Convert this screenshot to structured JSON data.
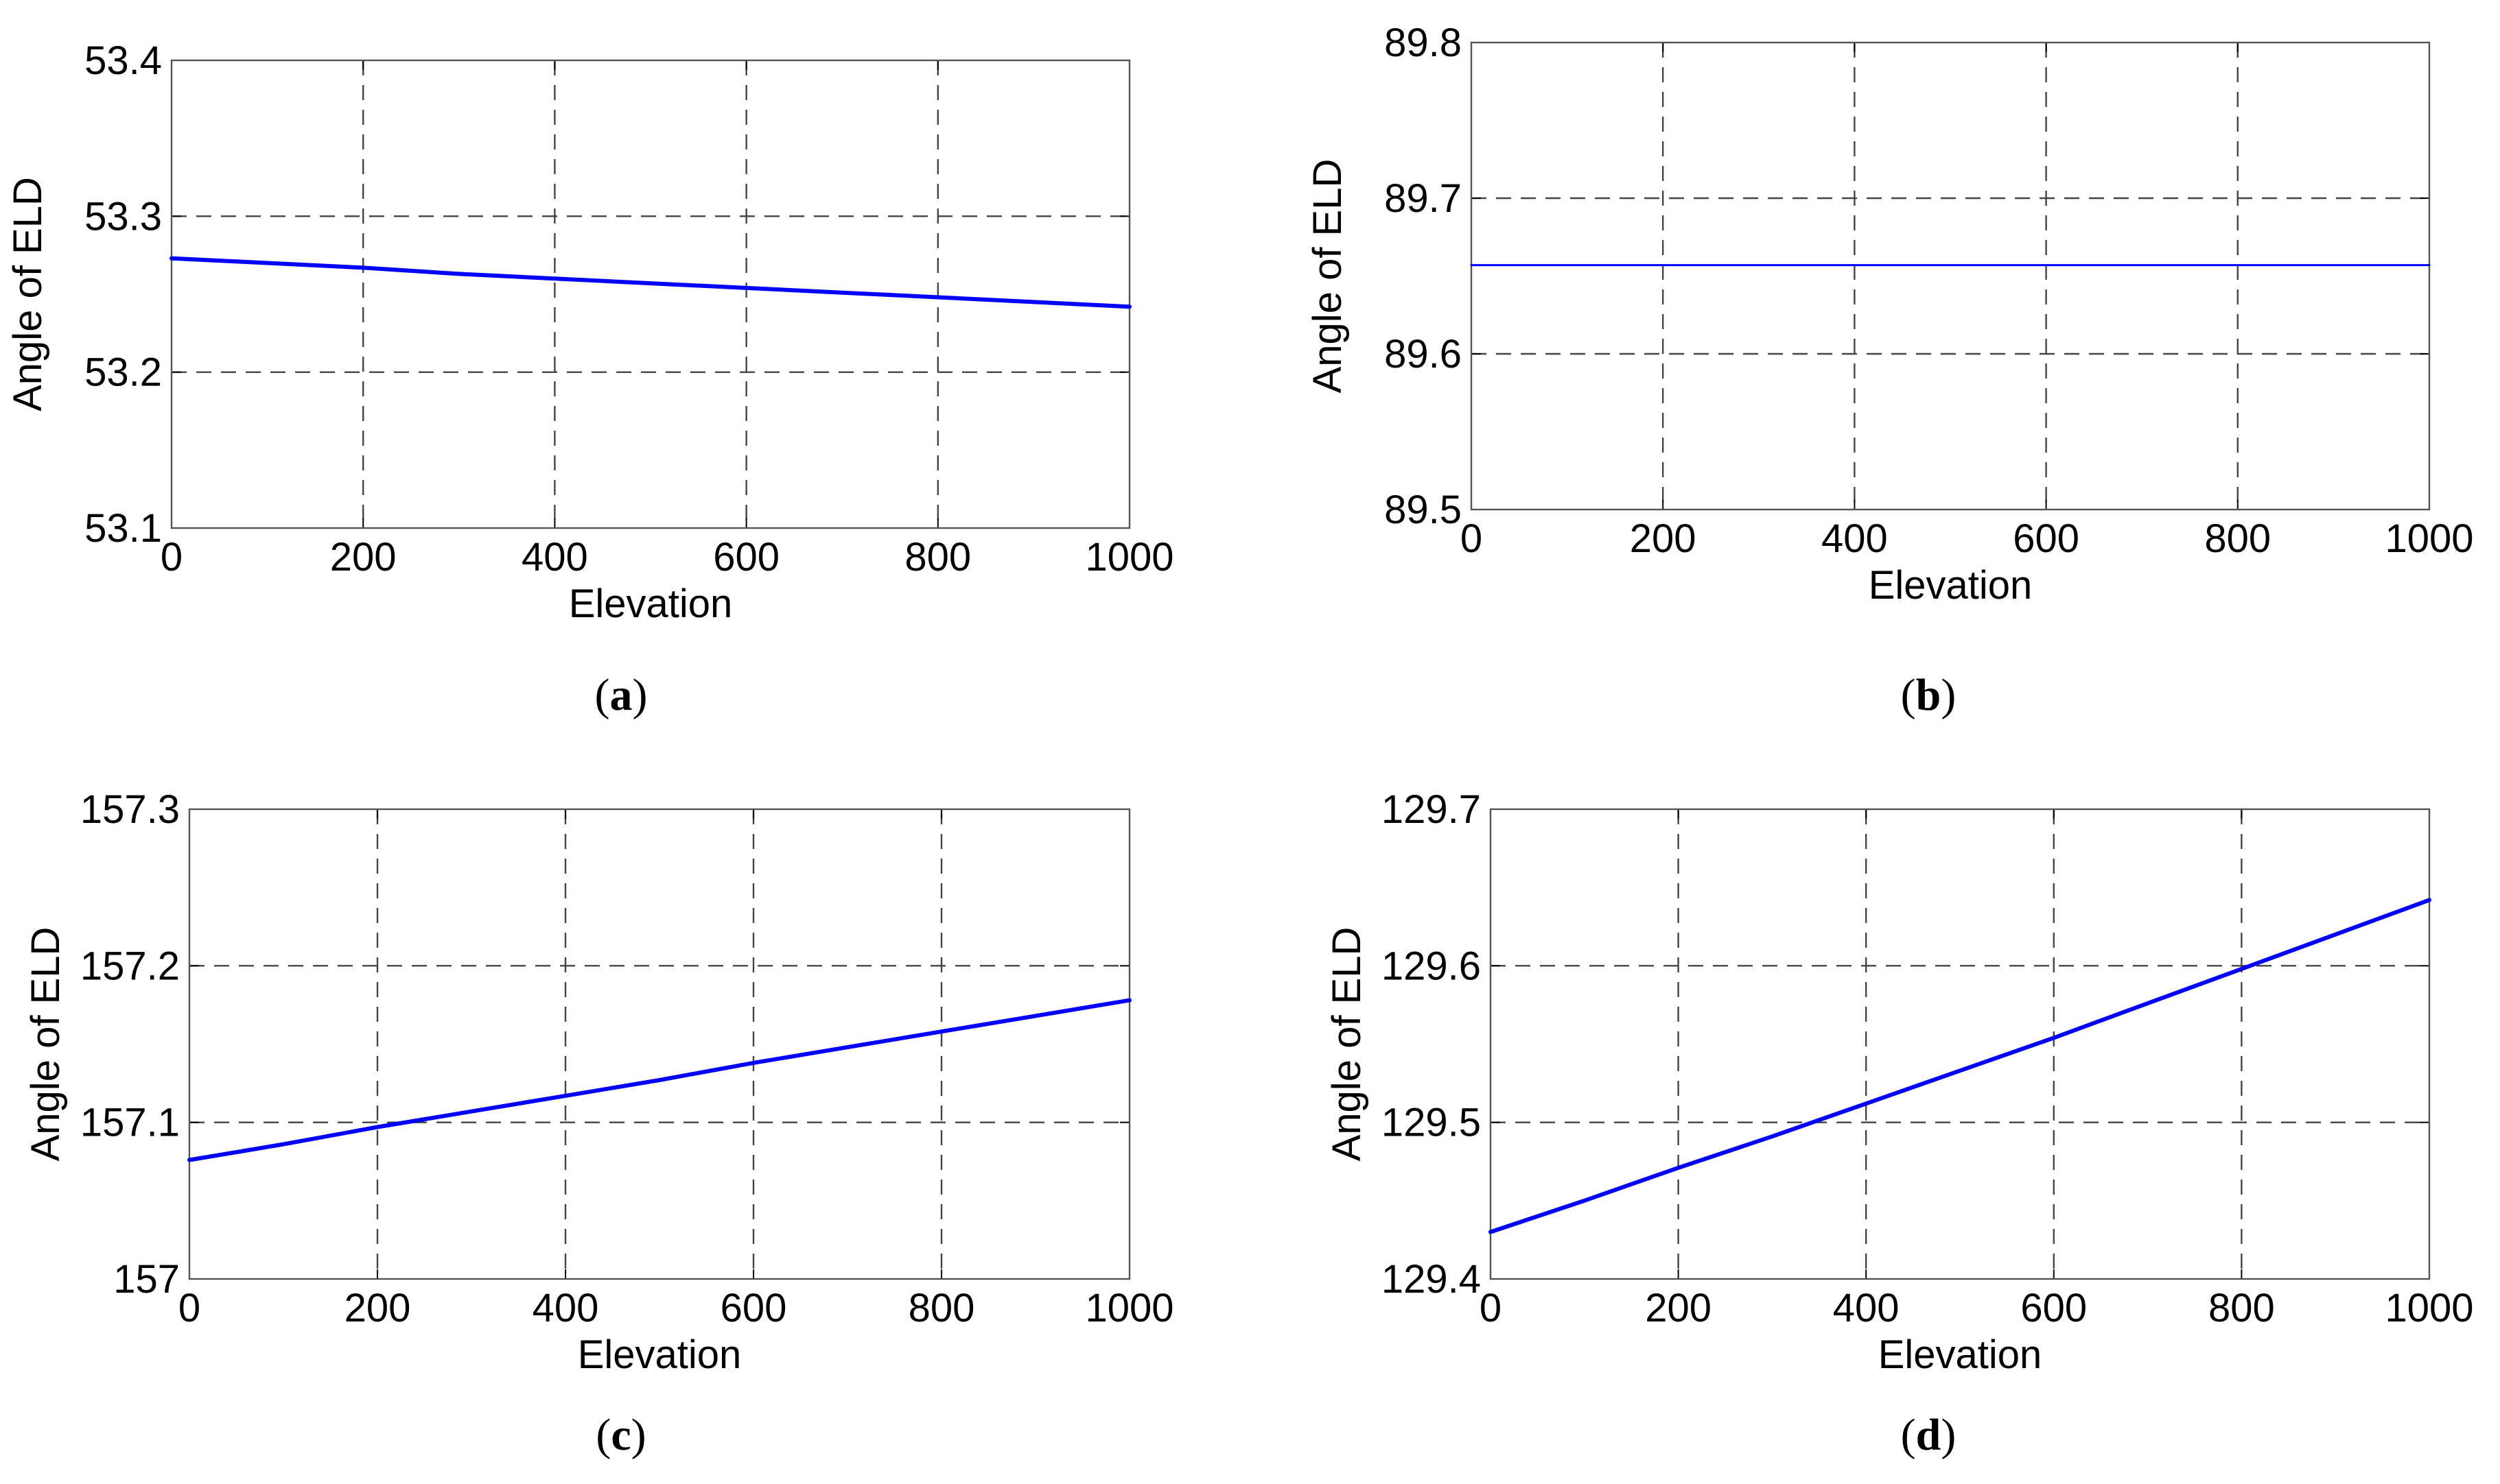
{
  "chart_data": [
    {
      "type": "line",
      "panel_label": "(a)",
      "panel_letter": "a",
      "xlabel": "Elevation",
      "ylabel": "Angle of ELD",
      "xlim": [
        0,
        1000
      ],
      "ylim": [
        53.1,
        53.4
      ],
      "xticks": [
        0,
        200,
        400,
        600,
        800,
        1000
      ],
      "xtick_labels": [
        "0",
        "200",
        "400",
        "600",
        "800",
        "1000"
      ],
      "yticks": [
        53.1,
        53.2,
        53.3,
        53.4
      ],
      "ytick_labels": [
        "53.1",
        "53.2",
        "53.3",
        "53.4"
      ],
      "grid": true,
      "series": [
        {
          "name": "Angle of ELD",
          "color": "#0000ff",
          "x": [
            0,
            100,
            200,
            300,
            400,
            500,
            600,
            700,
            800,
            900,
            1000
          ],
          "y": [
            53.273,
            53.27,
            53.267,
            53.263,
            53.26,
            53.257,
            53.254,
            53.251,
            53.248,
            53.245,
            53.242
          ]
        }
      ]
    },
    {
      "type": "line",
      "panel_label": "(b)",
      "panel_letter": "b",
      "xlabel": "Elevation",
      "ylabel": "Angle of ELD",
      "xlim": [
        0,
        1000
      ],
      "ylim": [
        89.5,
        89.8
      ],
      "xticks": [
        0,
        200,
        400,
        600,
        800,
        1000
      ],
      "xtick_labels": [
        "0",
        "200",
        "400",
        "600",
        "800",
        "1000"
      ],
      "yticks": [
        89.5,
        89.6,
        89.7,
        89.8
      ],
      "ytick_labels": [
        "89.5",
        "89.6",
        "89.7",
        "89.8"
      ],
      "grid": true,
      "series": [
        {
          "name": "Angle of ELD",
          "color": "#0000ff",
          "x": [
            0,
            100,
            200,
            300,
            400,
            500,
            600,
            700,
            800,
            900,
            1000
          ],
          "y": [
            89.657,
            89.657,
            89.657,
            89.657,
            89.657,
            89.657,
            89.657,
            89.657,
            89.657,
            89.657,
            89.657
          ]
        }
      ]
    },
    {
      "type": "line",
      "panel_label": "(c)",
      "panel_letter": "c",
      "xlabel": "Elevation",
      "ylabel": "Angle of ELD",
      "xlim": [
        0,
        1000
      ],
      "ylim": [
        157,
        157.3
      ],
      "xticks": [
        0,
        200,
        400,
        600,
        800,
        1000
      ],
      "xtick_labels": [
        "0",
        "200",
        "400",
        "600",
        "800",
        "1000"
      ],
      "yticks": [
        157,
        157.1,
        157.2,
        157.3
      ],
      "ytick_labels": [
        "157",
        "157.1",
        "157.2",
        "157.3"
      ],
      "grid": true,
      "series": [
        {
          "name": "Angle of ELD",
          "color": "#0000ff",
          "x": [
            0,
            100,
            200,
            300,
            400,
            500,
            600,
            700,
            800,
            900,
            1000
          ],
          "y": [
            157.076,
            157.086,
            157.097,
            157.107,
            157.117,
            157.127,
            157.138,
            157.148,
            157.158,
            157.168,
            157.178
          ]
        }
      ]
    },
    {
      "type": "line",
      "panel_label": "(d)",
      "panel_letter": "d",
      "xlabel": "Elevation",
      "ylabel": "Angle of ELD",
      "xlim": [
        0,
        1000
      ],
      "ylim": [
        129.4,
        129.7
      ],
      "xticks": [
        0,
        200,
        400,
        600,
        800,
        1000
      ],
      "xtick_labels": [
        "0",
        "200",
        "400",
        "600",
        "800",
        "1000"
      ],
      "yticks": [
        129.4,
        129.5,
        129.6,
        129.7
      ],
      "ytick_labels": [
        "129.4",
        "129.5",
        "129.6",
        "129.7"
      ],
      "grid": true,
      "series": [
        {
          "name": "Angle of ELD",
          "color": "#0000ff",
          "x": [
            0,
            100,
            200,
            300,
            400,
            500,
            600,
            700,
            800,
            900,
            1000
          ],
          "y": [
            129.43,
            129.45,
            129.471,
            129.491,
            129.512,
            129.533,
            129.554,
            129.576,
            129.598,
            129.62,
            129.642
          ]
        }
      ]
    }
  ]
}
